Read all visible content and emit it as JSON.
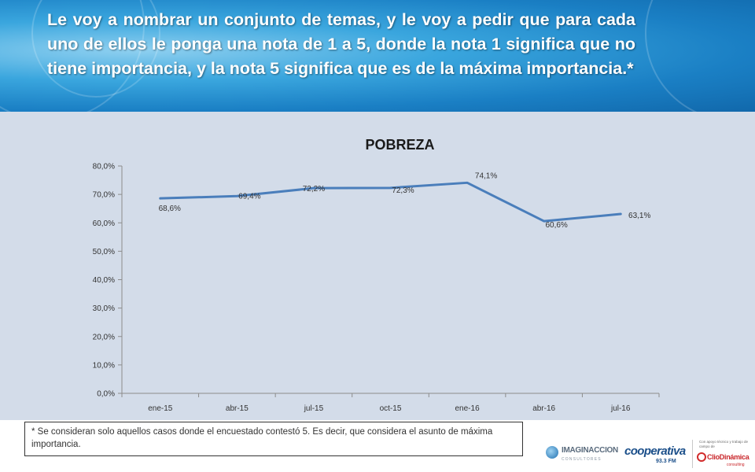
{
  "header": {
    "title": "Le voy a nombrar un conjunto de temas, y le voy a pedir que para cada uno de ellos le ponga una nota de 1 a 5, donde la nota 1 significa que no tiene importancia, y la nota 5 significa que es de la máxima importancia.*"
  },
  "chart_data": {
    "type": "line",
    "title": "POBREZA",
    "xlabel": "",
    "ylabel": "",
    "categories": [
      "ene-15",
      "abr-15",
      "jul-15",
      "oct-15",
      "ene-16",
      "abr-16",
      "jul-16"
    ],
    "series": [
      {
        "values": [
          68.6,
          69.4,
          72.2,
          72.3,
          74.1,
          60.6,
          63.1
        ],
        "labels": [
          "68,6%",
          "69,4%",
          "72,2%",
          "72,3%",
          "74,1%",
          "60,6%",
          "63,1%"
        ],
        "color": "#4a7ebb"
      }
    ],
    "ylim": [
      0,
      80
    ],
    "yticks": [
      0,
      10,
      20,
      30,
      40,
      50,
      60,
      70,
      80
    ],
    "ytick_labels": [
      "0,0%",
      "10,0%",
      "20,0%",
      "30,0%",
      "40,0%",
      "50,0%",
      "60,0%",
      "70,0%",
      "80,0%"
    ],
    "grid": false,
    "legend": "none"
  },
  "footnote": {
    "text": "* Se consideran solo aquellos casos donde el encuestado contestó 5. Es decir, que considera el asunto de máxima importancia."
  },
  "logos": {
    "imaginacion": "IMAGINACCION",
    "imaginacion_sub": "CONSULTORES",
    "cooperativa": "cooperativa",
    "cooperativa_freq": "93.3 FM",
    "clio_intro": "Con apoyo técnico y trabajo de campo de",
    "clio": "ClioDinámica",
    "clio_sub": "consulting"
  },
  "colors": {
    "header_blue": "#1a7fc4",
    "chart_background": "#d3dce9",
    "series_line": "#4a7ebb",
    "axis": "#8c8c8c"
  }
}
